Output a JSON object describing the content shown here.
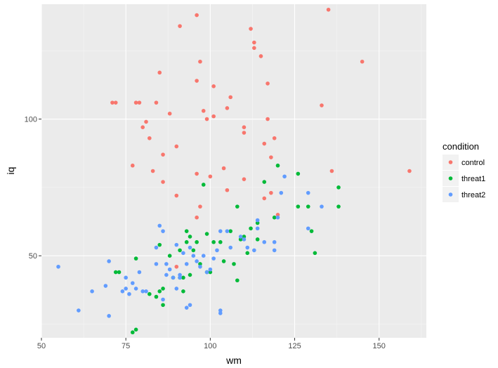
{
  "chart_data": {
    "type": "scatter",
    "xlabel": "wm",
    "ylabel": "iq",
    "xlim": [
      50,
      164
    ],
    "ylim": [
      20,
      142
    ],
    "x_ticks": [
      50,
      75,
      100,
      125,
      150
    ],
    "y_ticks": [
      50,
      100
    ],
    "grid": true,
    "legend_position": "right",
    "legend_title": "condition",
    "series": [
      {
        "name": "control",
        "color": "#F8766D",
        "points": [
          [
            71,
            106
          ],
          [
            72,
            106
          ],
          [
            77,
            83
          ],
          [
            78,
            106
          ],
          [
            79,
            106
          ],
          [
            80,
            97
          ],
          [
            81,
            99
          ],
          [
            82,
            93
          ],
          [
            83,
            81
          ],
          [
            84,
            106
          ],
          [
            85,
            117
          ],
          [
            86,
            87
          ],
          [
            86,
            77
          ],
          [
            88,
            102
          ],
          [
            90,
            72
          ],
          [
            90,
            90
          ],
          [
            91,
            134
          ],
          [
            96,
            138
          ],
          [
            96,
            114
          ],
          [
            96,
            80
          ],
          [
            96,
            64
          ],
          [
            97,
            68
          ],
          [
            97,
            121
          ],
          [
            98,
            103
          ],
          [
            99,
            100
          ],
          [
            100,
            79
          ],
          [
            101,
            101
          ],
          [
            101,
            112
          ],
          [
            104,
            82
          ],
          [
            105,
            104
          ],
          [
            106,
            108
          ],
          [
            105,
            74
          ],
          [
            110,
            97
          ],
          [
            110,
            95
          ],
          [
            110,
            78
          ],
          [
            112,
            133
          ],
          [
            113,
            128
          ],
          [
            113,
            126
          ],
          [
            115,
            123
          ],
          [
            116,
            91
          ],
          [
            116,
            71
          ],
          [
            117,
            113
          ],
          [
            117,
            100
          ],
          [
            118,
            86
          ],
          [
            118,
            73
          ],
          [
            119,
            93
          ],
          [
            120,
            65
          ],
          [
            133,
            105
          ],
          [
            135,
            140
          ],
          [
            136,
            81
          ],
          [
            145,
            121
          ],
          [
            159,
            81
          ],
          [
            90,
            46
          ]
        ]
      },
      {
        "name": "threat1",
        "color": "#00BA38",
        "points": [
          [
            72,
            44
          ],
          [
            73,
            44
          ],
          [
            77,
            22
          ],
          [
            78,
            23
          ],
          [
            78,
            49
          ],
          [
            82,
            36
          ],
          [
            84,
            35
          ],
          [
            85,
            54
          ],
          [
            85,
            37
          ],
          [
            86,
            38
          ],
          [
            86,
            32
          ],
          [
            88,
            50
          ],
          [
            89,
            42
          ],
          [
            91,
            42
          ],
          [
            91,
            52
          ],
          [
            92,
            42
          ],
          [
            92,
            37
          ],
          [
            93,
            59
          ],
          [
            93,
            55
          ],
          [
            94,
            57
          ],
          [
            94,
            43
          ],
          [
            95,
            52
          ],
          [
            96,
            55
          ],
          [
            97,
            47
          ],
          [
            98,
            76
          ],
          [
            99,
            58
          ],
          [
            99,
            44
          ],
          [
            100,
            44
          ],
          [
            101,
            55
          ],
          [
            103,
            55
          ],
          [
            104,
            48
          ],
          [
            106,
            59
          ],
          [
            107,
            47
          ],
          [
            108,
            68
          ],
          [
            108,
            41
          ],
          [
            109,
            56
          ],
          [
            110,
            57
          ],
          [
            111,
            51
          ],
          [
            112,
            60
          ],
          [
            114,
            62
          ],
          [
            114,
            56
          ],
          [
            116,
            77
          ],
          [
            119,
            64
          ],
          [
            120,
            83
          ],
          [
            126,
            80
          ],
          [
            126,
            68
          ],
          [
            129,
            68
          ],
          [
            130,
            59
          ],
          [
            131,
            51
          ],
          [
            138,
            75
          ],
          [
            138,
            68
          ]
        ]
      },
      {
        "name": "threat2",
        "color": "#619CFF",
        "points": [
          [
            55,
            46
          ],
          [
            61,
            30
          ],
          [
            65,
            37
          ],
          [
            69,
            39
          ],
          [
            70,
            48
          ],
          [
            70,
            28
          ],
          [
            74,
            37
          ],
          [
            75,
            42
          ],
          [
            75,
            38
          ],
          [
            76,
            36
          ],
          [
            77,
            40
          ],
          [
            78,
            38
          ],
          [
            79,
            44
          ],
          [
            80,
            37
          ],
          [
            81,
            37
          ],
          [
            84,
            47
          ],
          [
            84,
            53
          ],
          [
            85,
            61
          ],
          [
            86,
            59
          ],
          [
            86,
            34
          ],
          [
            87,
            43
          ],
          [
            87,
            47
          ],
          [
            88,
            45
          ],
          [
            89,
            42
          ],
          [
            90,
            38
          ],
          [
            90,
            54
          ],
          [
            91,
            43
          ],
          [
            91,
            42
          ],
          [
            92,
            51
          ],
          [
            93,
            47
          ],
          [
            93,
            31
          ],
          [
            94,
            53
          ],
          [
            94,
            32
          ],
          [
            95,
            50
          ],
          [
            96,
            48
          ],
          [
            97,
            46
          ],
          [
            98,
            50
          ],
          [
            99,
            44
          ],
          [
            100,
            45
          ],
          [
            101,
            49
          ],
          [
            102,
            52
          ],
          [
            103,
            59
          ],
          [
            103,
            30
          ],
          [
            103,
            29
          ],
          [
            105,
            59
          ],
          [
            106,
            53
          ],
          [
            109,
            57
          ],
          [
            110,
            56
          ],
          [
            111,
            53
          ],
          [
            113,
            52
          ],
          [
            114,
            63
          ],
          [
            114,
            60
          ],
          [
            116,
            55
          ],
          [
            119,
            55
          ],
          [
            119,
            52
          ],
          [
            120,
            64
          ],
          [
            121,
            73
          ],
          [
            122,
            79
          ],
          [
            129,
            73
          ],
          [
            129,
            60
          ],
          [
            133,
            68
          ]
        ]
      }
    ]
  }
}
